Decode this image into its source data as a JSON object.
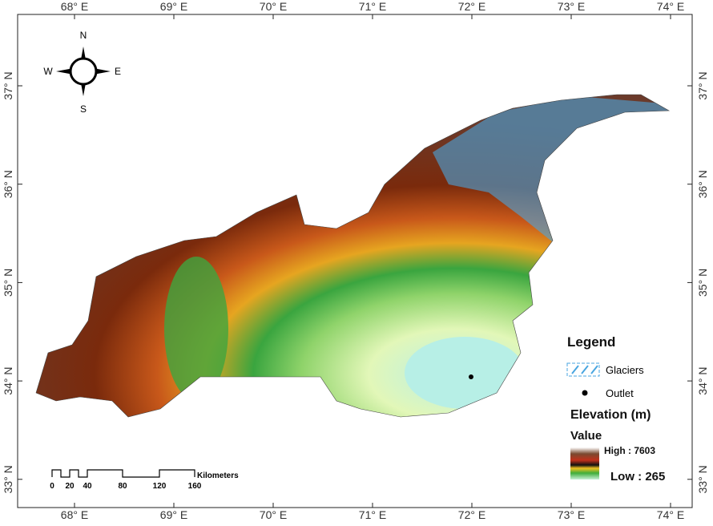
{
  "map": {
    "longitude_labels": [
      "68° E",
      "69° E",
      "70° E",
      "71° E",
      "72° E",
      "73° E",
      "74° E"
    ],
    "latitude_labels": [
      "37° N",
      "36° N",
      "35° N",
      "34° N",
      "33° N"
    ],
    "compass": {
      "north": "N",
      "south": "S",
      "east": "E",
      "west": "W"
    },
    "legend": {
      "title": "Legend",
      "glaciers": "Glaciers",
      "outlet": "Outlet",
      "elevation_title": "Elevation (m)",
      "value_title": "Value",
      "high": "High : 7603",
      "low": "Low : 265"
    },
    "scale_bar": {
      "labels": [
        "0",
        "20",
        "40",
        "80",
        "120",
        "160"
      ],
      "unit": "Kilometers"
    }
  }
}
